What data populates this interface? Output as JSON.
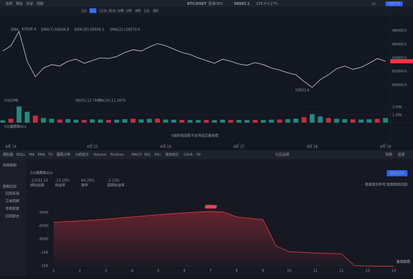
{
  "topbar": {
    "left": [
      "指標",
      "萬能",
      "多窗",
      "周期"
    ],
    "pair": "BTC/USDT",
    "exchange": "歐易OKX",
    "price": "58583.1",
    "change": "158.4",
    "change_pct": "0.27%",
    "right": [
      "1s",
      "K線分析"
    ]
  },
  "intervals": [
    "1分",
    "5分",
    "15分",
    "30分",
    "分時",
    "1時",
    "4時",
    "1日",
    "周K"
  ],
  "indicator_labels": [
    "EMA",
    "EMA(7):58544.8",
    "EMA(30):58568.1",
    "EMA(21):58570.0"
  ],
  "volume_labels": [
    "VOLUME",
    "MA(5):12.7817",
    "MA(10):11.3874"
  ],
  "custom_indicator": {
    "name": "5分鐘策略dca",
    "message": "X線新視窗暫不支持自定義指標"
  },
  "indicator_bar": [
    "選股器",
    "BOLL",
    "MA",
    "EMA",
    "TD",
    "籌碼分佈",
    "大額成交",
    "Volume",
    "Position",
    "MACD",
    "KDJ",
    "RSI",
    "爆倉統計",
    "LSUR",
    "FR",
    "社區指標"
  ],
  "sidebar": {
    "groups": [
      "指標編輯",
      "策略回測"
    ],
    "items": [
      "回測表現",
      "交易明細",
      "參數配置",
      "回測歷史"
    ]
  },
  "backtest": {
    "title": "5分鐘策略dca",
    "button": "開始回測",
    "note": "數據僅供參考,點擊觀看回測",
    "options": [
      "對數",
      "設置"
    ],
    "stats": [
      {
        "value": "-13192.14",
        "label": "總收益額"
      },
      {
        "value": "-13.19%",
        "label": "收益率"
      },
      {
        "value": "64.29%",
        "label": "勝率"
      },
      {
        "value": "-3.13%",
        "label": "超額收益率"
      }
    ],
    "peak_label": "-2735.8",
    "watermark": "金色财经"
  },
  "chart_data": [
    {
      "type": "line",
      "color": "#d1d4dc",
      "values": [
        65000,
        65800,
        67928.4,
        63500,
        61200,
        62500,
        63000,
        62800,
        63500,
        63800,
        63200,
        63600,
        64000,
        63900,
        64200,
        64800,
        65200,
        65000,
        65600,
        66100,
        65800,
        65300,
        64800,
        64500,
        64000,
        63600,
        63200,
        63800,
        63500,
        63100,
        62900,
        63300,
        63000,
        62500,
        62200,
        61800,
        61500,
        60500,
        59632.6,
        60800,
        61500,
        62400,
        62800,
        62300,
        62600,
        63200,
        63900,
        63500
      ],
      "annotations": [
        "67928.4",
        "59632.6"
      ],
      "ylim": [
        58500,
        69500
      ],
      "yticks": [
        {
          "value": 60000,
          "label": "60000.0"
        },
        {
          "value": 62000,
          "label": "62000.0"
        },
        {
          "value": 64000,
          "label": "64000.0"
        },
        {
          "value": 66000,
          "label": "66000.0"
        },
        {
          "value": 68000,
          "label": "68000.0"
        }
      ],
      "xticks": [
        {
          "value": 1,
          "label": "4月 14"
        },
        {
          "value": 11,
          "label": "4月 15"
        },
        {
          "value": 20,
          "label": "4月 16"
        },
        {
          "value": 29,
          "label": "4月 17"
        },
        {
          "value": 38,
          "label": "4月 18"
        },
        {
          "value": 47,
          "label": "4月 19"
        }
      ]
    },
    {
      "type": "bar",
      "color": "#26a69a",
      "values": [
        300,
        500,
        2100,
        1400,
        900,
        600,
        500,
        400,
        450,
        380,
        350,
        420,
        400,
        360,
        380,
        450,
        500,
        420,
        480,
        520,
        400,
        380,
        360,
        340,
        330,
        350,
        320,
        380,
        340,
        360,
        330,
        350,
        340,
        380,
        400,
        450,
        520,
        700,
        1100,
        800,
        600,
        500,
        450,
        420,
        400,
        430,
        480,
        600
      ],
      "ylim": [
        0,
        2500
      ],
      "yticks": [
        {
          "value": 1000,
          "label": "1.00k"
        },
        {
          "value": 2000,
          "label": "2.00k"
        }
      ]
    },
    {
      "type": "area",
      "color": "#f23645",
      "x": [
        1,
        2,
        3,
        4,
        5,
        6,
        7,
        7.5,
        8,
        9,
        9.5,
        10,
        11,
        12,
        12.5,
        13,
        14
      ],
      "values": [
        -5200,
        -4900,
        -4500,
        -4000,
        -3500,
        -3100,
        -2735.8,
        -2900,
        -4000,
        -4600,
        -10500,
        -11800,
        -12100,
        -12300,
        -14900,
        -15000,
        -15100
      ],
      "xlim": [
        1,
        14
      ],
      "xticks": [
        1,
        2,
        3,
        4,
        5,
        6,
        7,
        8,
        9,
        10,
        11,
        12,
        13,
        14
      ],
      "ylim": [
        -15300,
        1700
      ],
      "yticks": [
        -3000,
        -6000,
        -9000,
        {
          "value": -12000,
          "label": "-12K"
        },
        {
          "value": -15000,
          "label": "-15K"
        }
      ]
    }
  ]
}
